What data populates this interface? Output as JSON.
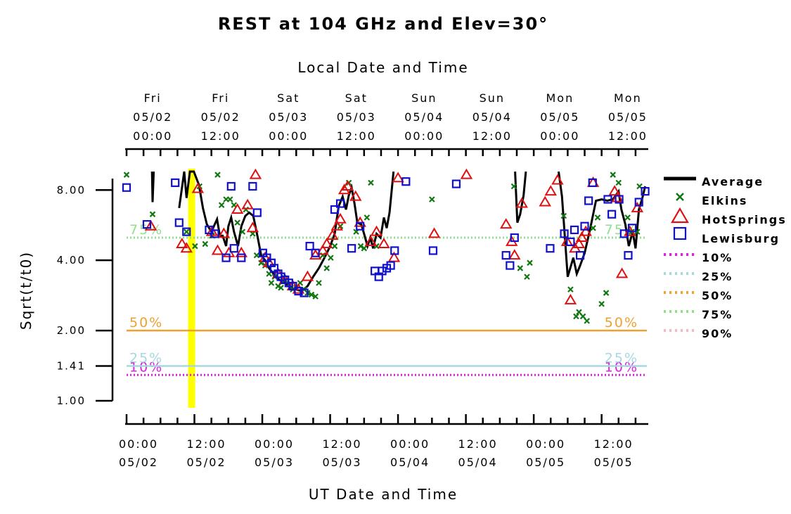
{
  "chart_data": {
    "type": "line",
    "title": "REST at 104 GHz and Elev=30°",
    "xlabel": "UT Date and Time",
    "x2label": "Local Date and Time",
    "ylabel": "Sqrt(t/t0)",
    "xlim": [
      0,
      92
    ],
    "ylim": [
      1.0,
      9.6
    ],
    "y_scale": "log",
    "x_unit": "hours since 05/02 00:00 UT",
    "yticks": [
      {
        "v": 1.0,
        "label": "1.00"
      },
      {
        "v": 1.41,
        "label": "1.41"
      },
      {
        "v": 2.0,
        "label": "2.00"
      },
      {
        "v": 4.0,
        "label": "4.00"
      },
      {
        "v": 8.0,
        "label": "8.00"
      }
    ],
    "bottom_ticks": [
      {
        "x": 0,
        "line1": "00:00",
        "line2": "05/02"
      },
      {
        "x": 12,
        "line1": "12:00",
        "line2": "05/02"
      },
      {
        "x": 24,
        "line1": "00:00",
        "line2": "05/03"
      },
      {
        "x": 36,
        "line1": "12:00",
        "line2": "05/03"
      },
      {
        "x": 48,
        "line1": "00:00",
        "line2": "05/04"
      },
      {
        "x": 60,
        "line1": "12:00",
        "line2": "05/04"
      },
      {
        "x": 72,
        "line1": "00:00",
        "line2": "05/05"
      },
      {
        "x": 84,
        "line1": "12:00",
        "line2": "05/05"
      }
    ],
    "top_ticks": [
      {
        "x": 5,
        "line1": "Fri",
        "line2": "05/02",
        "line3": "00:00"
      },
      {
        "x": 17,
        "line1": "Fri",
        "line2": "05/02",
        "line3": "12:00"
      },
      {
        "x": 29,
        "line1": "Sat",
        "line2": "05/03",
        "line3": "00:00"
      },
      {
        "x": 41,
        "line1": "Sat",
        "line2": "05/03",
        "line3": "12:00"
      },
      {
        "x": 53,
        "line1": "Sun",
        "line2": "05/04",
        "line3": "00:00"
      },
      {
        "x": 65,
        "line1": "Sun",
        "line2": "05/04",
        "line3": "12:00"
      },
      {
        "x": 77,
        "line1": "Mon",
        "line2": "05/05",
        "line3": "00:00"
      },
      {
        "x": 89,
        "line1": "Mon",
        "line2": "05/05",
        "line3": "12:00"
      }
    ],
    "highlight_x": 11.5,
    "percentiles": [
      {
        "name": "10%",
        "label": "10%",
        "value": 1.29,
        "color": "#e020e0"
      },
      {
        "name": "25%",
        "label": "25%",
        "value": 1.41,
        "color": "#a6d8e0"
      },
      {
        "name": "50%",
        "label": "50%",
        "value": 2.0,
        "color": "#f0a030"
      },
      {
        "name": "75%",
        "label": "75%",
        "value": 5.0,
        "color": "#90e090"
      },
      {
        "name": "90%",
        "label": "",
        "value": null,
        "color": "#f4b8c0"
      }
    ],
    "legend_position": "right",
    "series": [
      {
        "name": "Average",
        "kind": "line",
        "color": "#000000",
        "segments": [
          [
            [
              4.5,
              9.6
            ],
            [
              4.6,
              7.1
            ],
            [
              4.8,
              9.6
            ]
          ],
          [
            [
              9.3,
              6.7
            ],
            [
              10.2,
              9.6
            ],
            [
              10.6,
              7.4
            ],
            [
              11.2,
              9.6
            ],
            [
              11.9,
              9.6
            ],
            [
              12.8,
              8.4
            ],
            [
              13.5,
              6.7
            ],
            [
              14.2,
              5.7
            ],
            [
              15.0,
              5.3
            ],
            [
              16.0,
              6.0
            ],
            [
              16.5,
              5.1
            ],
            [
              17.0,
              5.1
            ],
            [
              17.6,
              4.6
            ],
            [
              18.0,
              5.6
            ],
            [
              18.5,
              6.1
            ],
            [
              19.0,
              5.3
            ],
            [
              19.7,
              4.6
            ],
            [
              20.3,
              5.6
            ],
            [
              21.0,
              6.2
            ],
            [
              21.7,
              6.4
            ],
            [
              22.4,
              6.2
            ],
            [
              23.2,
              5.0
            ],
            [
              23.8,
              4.2
            ],
            [
              24.5,
              4.0
            ],
            [
              25.2,
              3.7
            ],
            [
              26.0,
              3.5
            ],
            [
              27.0,
              3.3
            ],
            [
              28.0,
              3.2
            ],
            [
              29.0,
              3.05
            ],
            [
              30.0,
              3.0
            ],
            [
              31.0,
              2.95
            ],
            [
              32.0,
              3.1
            ],
            [
              33.0,
              3.4
            ],
            [
              34.0,
              3.7
            ],
            [
              35.0,
              4.1
            ],
            [
              36.0,
              4.6
            ],
            [
              36.8,
              5.2
            ],
            [
              37.5,
              6.8
            ],
            [
              38.2,
              7.5
            ],
            [
              38.8,
              6.6
            ],
            [
              39.3,
              7.6
            ],
            [
              39.8,
              8.2
            ],
            [
              40.3,
              7.0
            ],
            [
              40.8,
              5.8
            ],
            [
              41.5,
              5.7
            ],
            [
              42.0,
              5.2
            ],
            [
              42.6,
              4.6
            ],
            [
              43.1,
              5.0
            ],
            [
              43.6,
              4.5
            ],
            [
              44.2,
              5.2
            ],
            [
              44.9,
              5.0
            ],
            [
              45.5,
              6.1
            ],
            [
              46.0,
              5.5
            ],
            [
              46.5,
              6.4
            ],
            [
              47.2,
              9.6
            ]
          ],
          [
            [
              68.7,
              9.6
            ],
            [
              69.1,
              5.8
            ],
            [
              69.6,
              6.3
            ],
            [
              70.2,
              7.6
            ],
            [
              70.6,
              9.6
            ]
          ],
          [
            [
              76.4,
              9.6
            ],
            [
              77.0,
              7.5
            ],
            [
              78.0,
              3.4
            ],
            [
              79.0,
              4.1
            ],
            [
              79.6,
              3.5
            ],
            [
              80.2,
              3.8
            ],
            [
              81.0,
              4.3
            ],
            [
              82.0,
              5.5
            ],
            [
              83.0,
              7.2
            ],
            [
              84.0,
              7.3
            ],
            [
              85.0,
              7.2
            ],
            [
              86.0,
              7.3
            ],
            [
              87.0,
              7.9
            ],
            [
              87.5,
              6.6
            ],
            [
              88.2,
              5.7
            ],
            [
              88.8,
              4.6
            ],
            [
              89.5,
              5.3
            ],
            [
              90.0,
              4.5
            ],
            [
              90.6,
              6.6
            ],
            [
              91.2,
              7.4
            ],
            [
              91.7,
              8.3
            ]
          ]
        ]
      },
      {
        "name": "Elkins",
        "kind": "x",
        "color": "#117711",
        "points": [
          [
            0,
            9.3
          ],
          [
            4.6,
            6.3
          ],
          [
            10.6,
            5.3
          ],
          [
            12.1,
            4.6
          ],
          [
            12.9,
            8.3
          ],
          [
            13.9,
            4.7
          ],
          [
            15.1,
            5.1
          ],
          [
            16.1,
            9.3
          ],
          [
            16.8,
            6.9
          ],
          [
            17.6,
            7.3
          ],
          [
            18.3,
            7.3
          ],
          [
            19.0,
            6.9
          ],
          [
            19.6,
            5.8
          ],
          [
            20.5,
            5.3
          ],
          [
            21.1,
            6.6
          ],
          [
            22.3,
            5.2
          ],
          [
            23.0,
            4.2
          ],
          [
            23.8,
            3.9
          ],
          [
            24.5,
            3.8
          ],
          [
            25.2,
            3.5
          ],
          [
            25.6,
            3.2
          ],
          [
            26.2,
            3.4
          ],
          [
            26.8,
            3.1
          ],
          [
            27.3,
            3.05
          ],
          [
            28.0,
            3.3
          ],
          [
            28.7,
            3.15
          ],
          [
            29.4,
            3.0
          ],
          [
            30.0,
            3.05
          ],
          [
            30.7,
            3.2
          ],
          [
            31.4,
            3.0
          ],
          [
            32.0,
            2.9
          ],
          [
            32.7,
            2.85
          ],
          [
            33.4,
            2.8
          ],
          [
            34.0,
            3.2
          ],
          [
            34.7,
            4.2
          ],
          [
            35.4,
            3.7
          ],
          [
            36.1,
            4.1
          ],
          [
            36.8,
            4.6
          ],
          [
            37.8,
            5.6
          ],
          [
            39.3,
            8.6
          ],
          [
            40.6,
            5.3
          ],
          [
            41.4,
            4.6
          ],
          [
            42.0,
            4.5
          ],
          [
            42.5,
            6.1
          ],
          [
            43.2,
            8.6
          ],
          [
            44.2,
            4.6
          ],
          [
            54.0,
            7.3
          ],
          [
            68.5,
            8.3
          ],
          [
            69.6,
            3.7
          ],
          [
            70.8,
            3.4
          ],
          [
            71.3,
            3.9
          ],
          [
            77.3,
            6.2
          ],
          [
            78.5,
            3.0
          ],
          [
            79.5,
            2.3
          ],
          [
            80.0,
            2.4
          ],
          [
            80.7,
            2.3
          ],
          [
            81.4,
            2.2
          ],
          [
            82.5,
            5.5
          ],
          [
            83.3,
            6.1
          ],
          [
            84.0,
            2.6
          ],
          [
            84.8,
            2.9
          ],
          [
            86.0,
            9.3
          ],
          [
            87.0,
            8.6
          ],
          [
            88.6,
            6.1
          ],
          [
            89.3,
            5.3
          ],
          [
            90.3,
            5.3
          ],
          [
            90.7,
            8.3
          ]
        ]
      },
      {
        "name": "HotSprings",
        "kind": "triangle",
        "color": "#dd1111",
        "points": [
          [
            4.3,
            5.6
          ],
          [
            9.8,
            4.7
          ],
          [
            10.6,
            4.5
          ],
          [
            12.6,
            8.1
          ],
          [
            15.1,
            5.3
          ],
          [
            16.1,
            4.4
          ],
          [
            17.2,
            5.2
          ],
          [
            18.1,
            4.3
          ],
          [
            19.6,
            6.6
          ],
          [
            20.3,
            4.3
          ],
          [
            21.4,
            6.9
          ],
          [
            22.3,
            5.5
          ],
          [
            22.8,
            9.3
          ],
          [
            24.5,
            4.1
          ],
          [
            25.2,
            3.9
          ],
          [
            26.8,
            3.5
          ],
          [
            28.0,
            3.3
          ],
          [
            29.4,
            3.1
          ],
          [
            30.4,
            3.0
          ],
          [
            32.0,
            3.4
          ],
          [
            33.4,
            4.2
          ],
          [
            34.7,
            4.4
          ],
          [
            35.4,
            4.7
          ],
          [
            36.4,
            5.1
          ],
          [
            37.2,
            5.6
          ],
          [
            37.8,
            6.0
          ],
          [
            38.5,
            8.0
          ],
          [
            39.1,
            8.3
          ],
          [
            40.5,
            7.5
          ],
          [
            41.3,
            5.8
          ],
          [
            43.2,
            4.8
          ],
          [
            44.2,
            5.3
          ],
          [
            45.5,
            4.7
          ],
          [
            47.3,
            4.1
          ],
          [
            48.0,
            9.0
          ],
          [
            54.4,
            5.2
          ],
          [
            60.1,
            9.3
          ],
          [
            67.1,
            5.7
          ],
          [
            68.1,
            4.8
          ],
          [
            68.6,
            4.2
          ],
          [
            69.9,
            7.0
          ],
          [
            74.0,
            7.1
          ],
          [
            75.0,
            7.9
          ],
          [
            76.2,
            8.8
          ],
          [
            77.9,
            4.8
          ],
          [
            78.5,
            2.7
          ],
          [
            79.3,
            4.5
          ],
          [
            80.0,
            4.7
          ],
          [
            80.5,
            5.0
          ],
          [
            81.2,
            5.3
          ],
          [
            82.5,
            8.6
          ],
          [
            86.3,
            7.9
          ],
          [
            86.8,
            7.4
          ],
          [
            87.6,
            3.5
          ],
          [
            89.0,
            5.3
          ],
          [
            90.3,
            6.7
          ]
        ]
      },
      {
        "name": "Lewisburg",
        "kind": "square",
        "color": "#1111cc",
        "points": [
          [
            0,
            8.2
          ],
          [
            3.6,
            5.7
          ],
          [
            8.6,
            8.6
          ],
          [
            9.3,
            5.8
          ],
          [
            10.6,
            5.3
          ],
          [
            14.6,
            5.4
          ],
          [
            15.6,
            5.2
          ],
          [
            17.6,
            4.1
          ],
          [
            18.5,
            8.3
          ],
          [
            19.0,
            4.5
          ],
          [
            20.3,
            4.1
          ],
          [
            22.3,
            8.3
          ],
          [
            23.1,
            6.4
          ],
          [
            24.1,
            4.3
          ],
          [
            24.8,
            4.1
          ],
          [
            25.6,
            3.9
          ],
          [
            26.1,
            3.7
          ],
          [
            26.8,
            3.5
          ],
          [
            27.3,
            3.4
          ],
          [
            28.0,
            3.3
          ],
          [
            28.7,
            3.2
          ],
          [
            29.4,
            3.1
          ],
          [
            30.4,
            2.95
          ],
          [
            31.4,
            2.9
          ],
          [
            32.4,
            4.6
          ],
          [
            33.4,
            4.3
          ],
          [
            36.8,
            6.6
          ],
          [
            37.8,
            7.0
          ],
          [
            39.8,
            4.5
          ],
          [
            41.3,
            5.6
          ],
          [
            43.9,
            3.6
          ],
          [
            44.6,
            3.4
          ],
          [
            45.2,
            3.6
          ],
          [
            46.0,
            3.7
          ],
          [
            46.7,
            3.8
          ],
          [
            47.4,
            4.4
          ],
          [
            49.4,
            8.7
          ],
          [
            54.2,
            4.4
          ],
          [
            58.3,
            8.5
          ],
          [
            67.1,
            4.2
          ],
          [
            67.8,
            3.8
          ],
          [
            68.6,
            5.0
          ],
          [
            74.9,
            4.5
          ],
          [
            77.4,
            5.2
          ],
          [
            78.5,
            4.8
          ],
          [
            79.2,
            5.4
          ],
          [
            80.2,
            4.2
          ],
          [
            81.0,
            5.6
          ],
          [
            81.7,
            7.2
          ],
          [
            82.4,
            8.6
          ],
          [
            85.1,
            7.3
          ],
          [
            85.8,
            6.3
          ],
          [
            87.1,
            7.3
          ],
          [
            88.0,
            5.2
          ],
          [
            88.7,
            4.2
          ],
          [
            89.4,
            5.5
          ],
          [
            90.6,
            7.1
          ],
          [
            91.7,
            7.9
          ]
        ]
      }
    ]
  }
}
